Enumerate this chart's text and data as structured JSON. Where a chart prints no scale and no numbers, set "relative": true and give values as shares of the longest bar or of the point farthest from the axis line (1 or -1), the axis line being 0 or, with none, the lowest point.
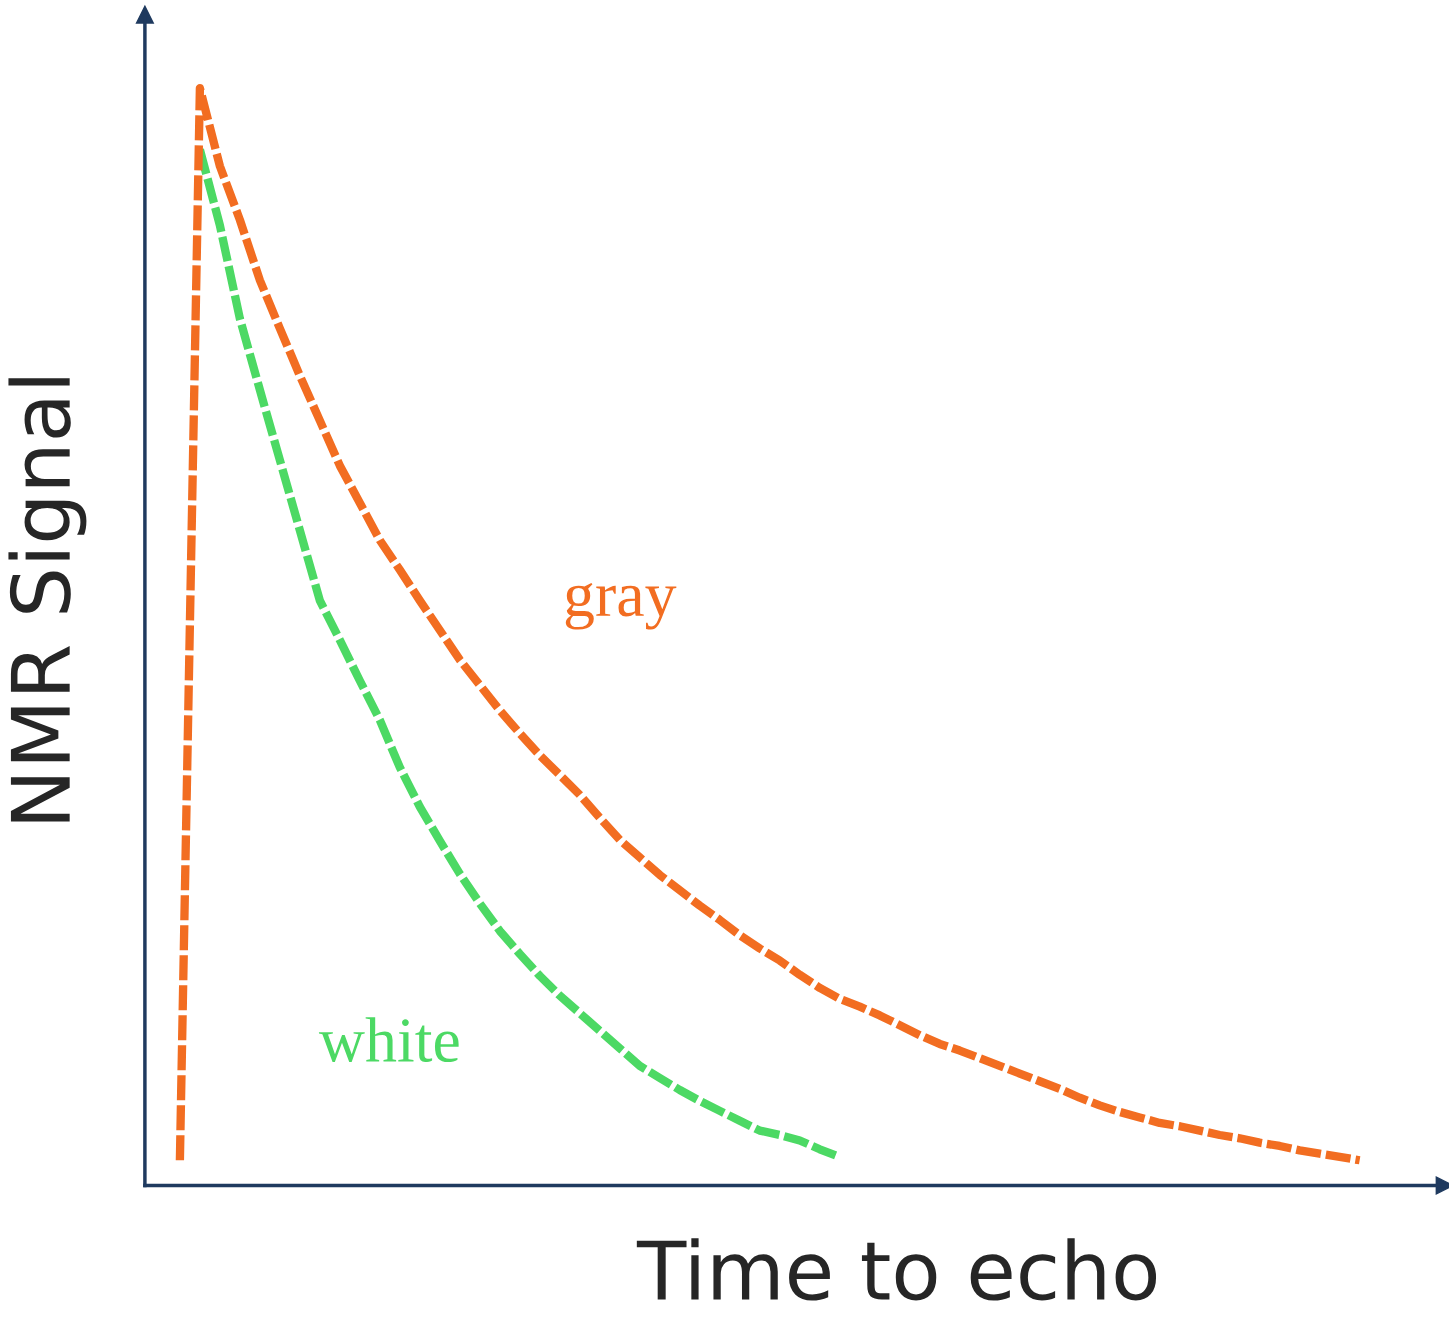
{
  "chart_data": {
    "type": "line",
    "relative": true,
    "xlabel": "Time to echo",
    "ylabel": "NMR Signal",
    "line_style": "dashed",
    "legend": false,
    "categories": [
      null,
      null,
      null,
      null,
      null,
      null,
      null,
      null,
      null,
      null,
      null,
      null,
      null,
      null,
      null,
      null,
      null,
      null,
      null,
      null,
      null,
      null,
      null,
      null,
      null,
      null,
      null,
      null,
      null,
      null,
      null,
      null,
      null,
      null,
      null,
      null,
      null,
      null,
      null,
      null,
      null,
      null,
      null,
      null,
      null,
      null,
      null,
      null,
      null,
      null,
      null,
      null,
      null,
      null,
      null,
      null,
      null,
      null,
      null,
      null
    ],
    "series": [
      {
        "name": "gray",
        "color": "#f26d21",
        "values": [
          0.023,
          1.0,
          0.929,
          0.88,
          0.825,
          0.781,
          0.738,
          0.697,
          0.656,
          0.622,
          0.588,
          0.561,
          0.533,
          0.506,
          0.479,
          0.456,
          0.433,
          0.412,
          0.392,
          0.374,
          0.356,
          0.335,
          0.315,
          0.299,
          0.283,
          0.269,
          0.255,
          0.242,
          0.228,
          0.216,
          0.205,
          0.192,
          0.18,
          0.17,
          0.163,
          0.155,
          0.146,
          0.137,
          0.129,
          0.123,
          0.116,
          0.109,
          0.102,
          0.095,
          0.088,
          0.08,
          0.073,
          0.067,
          0.062,
          0.057,
          0.054,
          0.05,
          0.046,
          0.043,
          0.039,
          0.036,
          0.032,
          0.029,
          0.026,
          0.023
        ]
      },
      {
        "name": "white",
        "color": "#4cd964",
        "values": [
          null,
          0.944,
          0.875,
          0.79,
          0.725,
          0.661,
          0.597,
          0.533,
          0.497,
          0.46,
          0.424,
          0.381,
          0.345,
          0.314,
          0.284,
          0.257,
          0.232,
          0.211,
          0.191,
          0.173,
          0.157,
          0.141,
          0.125,
          0.109,
          0.098,
          0.087,
          0.077,
          0.068,
          0.059,
          0.05,
          0.046,
          0.041,
          0.033,
          0.026,
          null,
          null,
          null,
          null,
          null,
          null,
          null,
          null,
          null,
          null,
          null,
          null,
          null,
          null,
          null,
          null,
          null,
          null,
          null,
          null,
          null,
          null,
          null,
          null,
          null,
          null
        ]
      }
    ]
  }
}
